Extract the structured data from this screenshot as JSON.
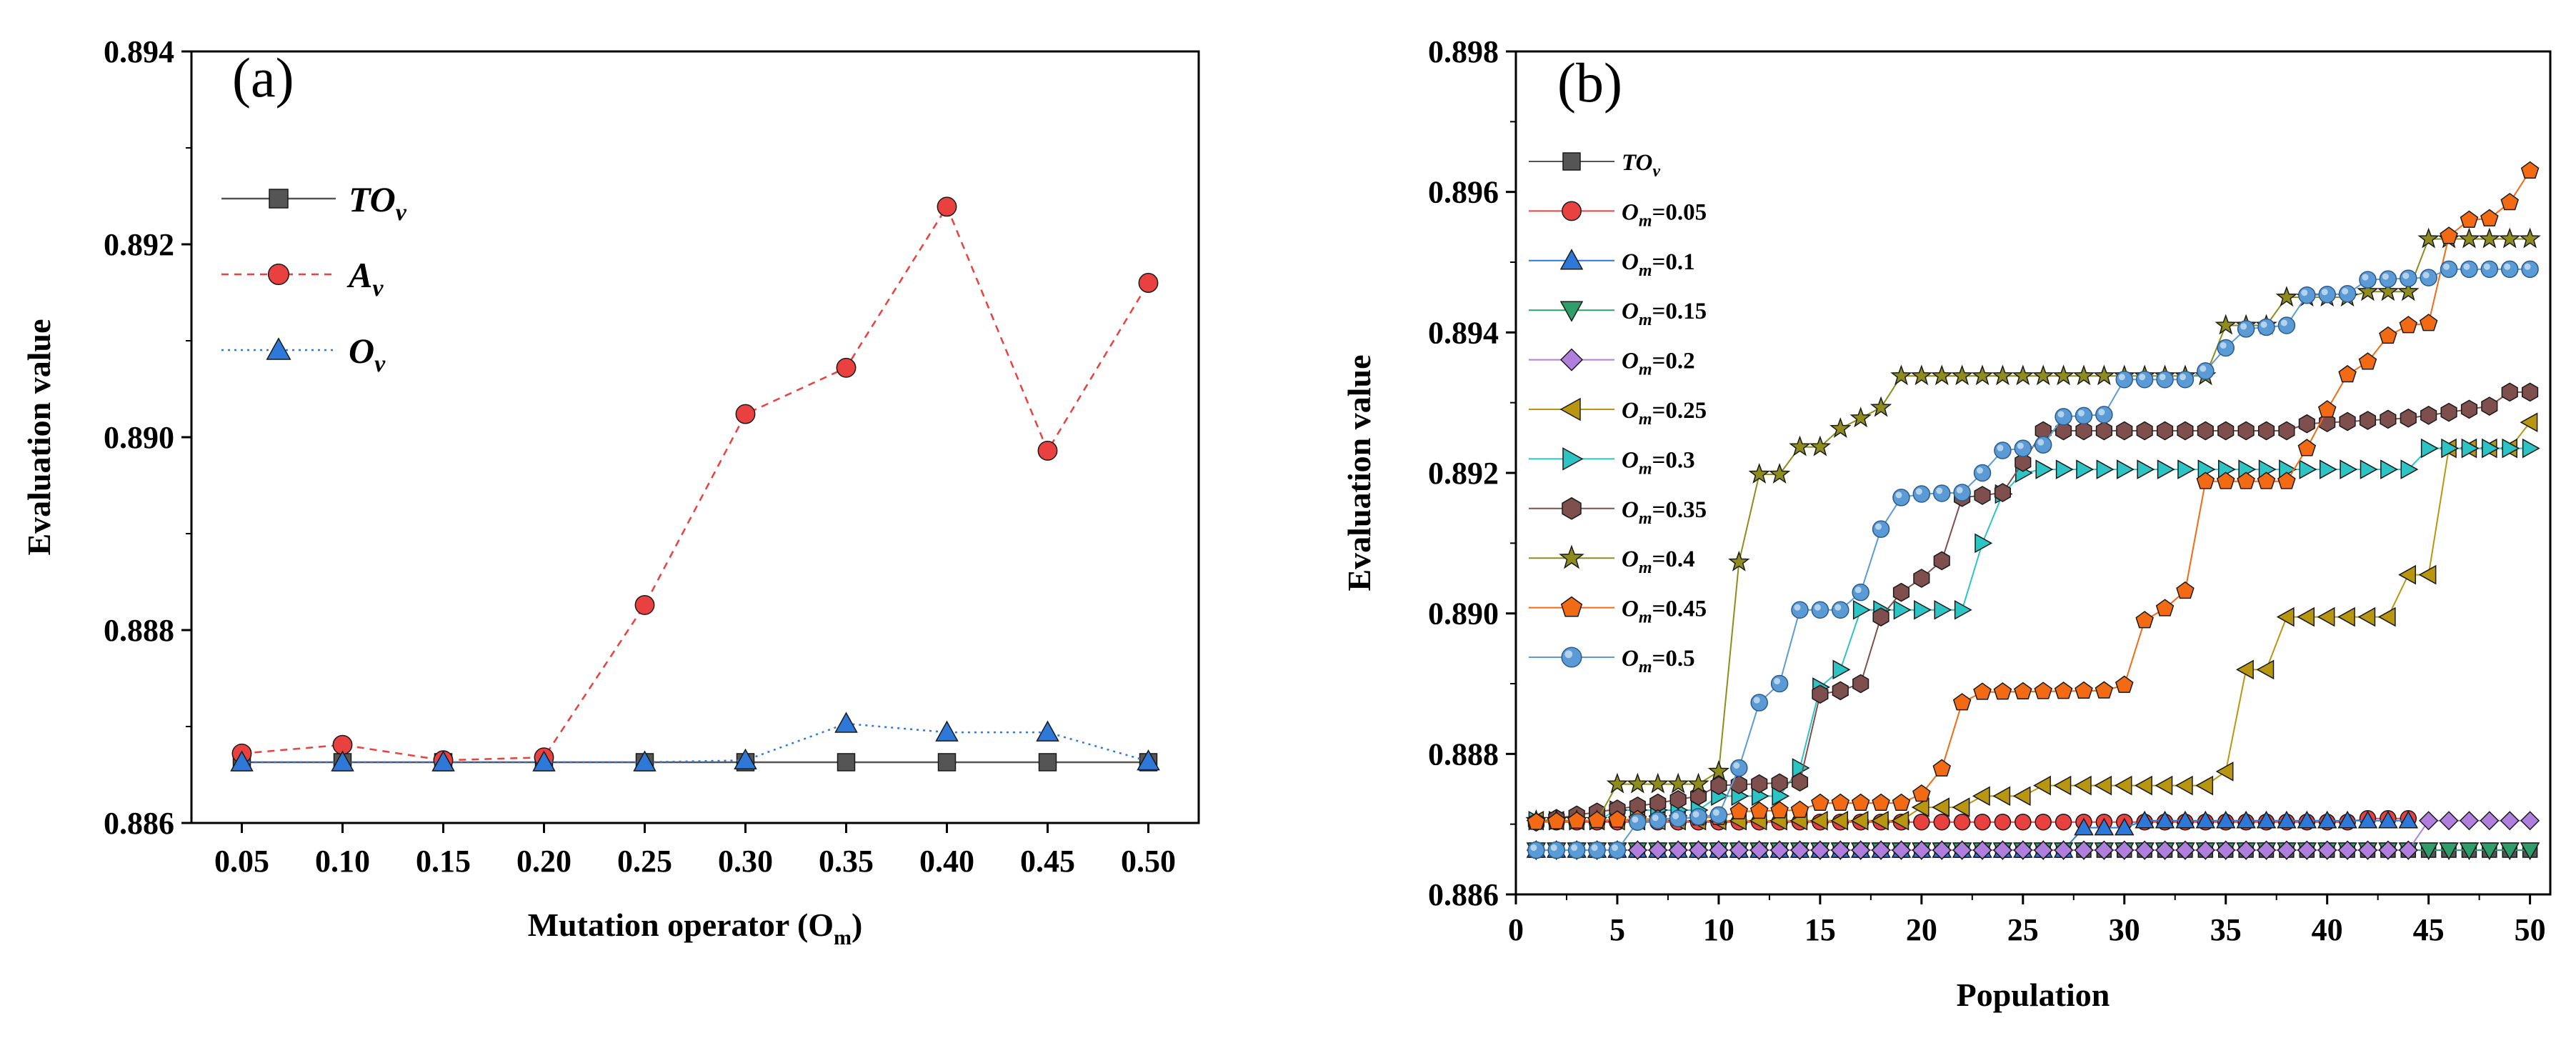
{
  "chart_data": [
    {
      "type": "line",
      "panel_label": "(a)",
      "xlabel": "Mutation operator (O",
      "xlabel_sub": "m",
      "xlabel_end": ")",
      "ylabel": "Evaluation value",
      "xlim": [
        0.025,
        0.525
      ],
      "ylim": [
        0.886,
        0.894
      ],
      "x": [
        0.05,
        0.1,
        0.15,
        0.2,
        0.25,
        0.3,
        0.35,
        0.4,
        0.45,
        0.5
      ],
      "x_tick_labels": [
        "0.05",
        "0.10",
        "0.15",
        "0.20",
        "0.25",
        "0.30",
        "0.35",
        "0.40",
        "0.45",
        "0.50"
      ],
      "y_ticks": [
        0.886,
        0.888,
        0.89,
        0.892,
        0.894
      ],
      "y_tick_labels": [
        "0.886",
        "0.888",
        "0.890",
        "0.892",
        "0.894"
      ],
      "legend_position": "upper-left",
      "series": [
        {
          "name": "TO",
          "sub": "v",
          "color": "#555555",
          "marker": "square",
          "dash": "",
          "values": [
            0.88663,
            0.88663,
            0.88663,
            0.88663,
            0.88663,
            0.88663,
            0.88663,
            0.88663,
            0.88663,
            0.88663
          ]
        },
        {
          "name": "A",
          "sub": "v",
          "color": "#e8413f",
          "marker": "circle",
          "dash": "10,8",
          "values": [
            0.88672,
            0.88681,
            0.88665,
            0.88668,
            0.88826,
            0.89024,
            0.89072,
            0.89239,
            0.88986,
            0.8916
          ]
        },
        {
          "name": "O",
          "sub": "v",
          "color": "#2d78d8",
          "marker": "triangle-up",
          "dash": "3,6",
          "values": [
            0.88663,
            0.88663,
            0.88663,
            0.88663,
            0.88663,
            0.88665,
            0.88703,
            0.88694,
            0.88694,
            0.88664
          ]
        }
      ]
    },
    {
      "type": "line",
      "panel_label": "(b)",
      "xlabel": "Population",
      "ylabel": "Evaluation value",
      "xlim": [
        0,
        51
      ],
      "ylim": [
        0.886,
        0.898
      ],
      "x_ticks": [
        0,
        5,
        10,
        15,
        20,
        25,
        30,
        35,
        40,
        45,
        50
      ],
      "x_tick_labels": [
        "0",
        "5",
        "10",
        "15",
        "20",
        "25",
        "30",
        "35",
        "40",
        "45",
        "50"
      ],
      "y_ticks": [
        0.886,
        0.888,
        0.89,
        0.892,
        0.894,
        0.896,
        0.898
      ],
      "y_tick_labels": [
        "0.886",
        "0.888",
        "0.890",
        "0.892",
        "0.894",
        "0.896",
        "0.898"
      ],
      "legend_position": "upper-left",
      "series": [
        {
          "name": "TO",
          "sub": "v",
          "eq": "",
          "color": "#555555",
          "marker": "square",
          "breakpoints": [
            [
              1,
              0.88663
            ],
            [
              50,
              0.88663
            ]
          ]
        },
        {
          "name": "O",
          "sub": "m",
          "eq": "=0.05",
          "color": "#e8413f",
          "marker": "circle",
          "breakpoints": [
            [
              1,
              0.88703
            ],
            [
              41,
              0.88703
            ],
            [
              42,
              0.88708
            ],
            [
              44,
              0.88708
            ]
          ]
        },
        {
          "name": "O",
          "sub": "m",
          "eq": "=0.1",
          "color": "#2d78d8",
          "marker": "triangle-up",
          "breakpoints": [
            [
              1,
              0.88663
            ],
            [
              27,
              0.88663
            ],
            [
              28,
              0.88695
            ],
            [
              30,
              0.88695
            ],
            [
              31,
              0.88705
            ],
            [
              44,
              0.88705
            ]
          ]
        },
        {
          "name": "O",
          "sub": "m",
          "eq": "=0.15",
          "color": "#2e9e6a",
          "marker": "triangle-down",
          "breakpoints": [
            [
              1,
              0.88663
            ],
            [
              44,
              0.88663
            ],
            [
              45,
              0.88663
            ],
            [
              50,
              0.88663
            ]
          ]
        },
        {
          "name": "O",
          "sub": "m",
          "eq": "=0.2",
          "color": "#b07fdd",
          "marker": "diamond",
          "breakpoints": [
            [
              1,
              0.88663
            ],
            [
              44,
              0.88663
            ],
            [
              45,
              0.88705
            ],
            [
              50,
              0.88705
            ]
          ]
        },
        {
          "name": "O",
          "sub": "m",
          "eq": "=0.25",
          "color": "#b8960f",
          "marker": "triangle-left",
          "breakpoints": [
            [
              1,
              0.88705
            ],
            [
              19,
              0.88705
            ],
            [
              20,
              0.88724
            ],
            [
              22,
              0.88724
            ],
            [
              23,
              0.8874
            ],
            [
              25,
              0.8874
            ],
            [
              26,
              0.88755
            ],
            [
              34,
              0.88755
            ],
            [
              35,
              0.88775
            ],
            [
              36,
              0.8892
            ],
            [
              37,
              0.8892
            ],
            [
              38,
              0.88995
            ],
            [
              43,
              0.88995
            ],
            [
              44,
              0.89055
            ],
            [
              45,
              0.89055
            ],
            [
              46,
              0.89235
            ],
            [
              49,
              0.89235
            ],
            [
              50,
              0.89272
            ]
          ]
        },
        {
          "name": "O",
          "sub": "m",
          "eq": "=0.3",
          "color": "#2cc4c4",
          "marker": "triangle-right",
          "breakpoints": [
            [
              1,
              0.88705
            ],
            [
              4,
              0.88705
            ],
            [
              5,
              0.8872
            ],
            [
              9,
              0.8872
            ],
            [
              10,
              0.8874
            ],
            [
              13,
              0.8874
            ],
            [
              14,
              0.8878
            ],
            [
              15,
              0.88895
            ],
            [
              16,
              0.8892
            ],
            [
              17,
              0.89005
            ],
            [
              21,
              0.89005
            ],
            [
              22,
              0.89005
            ],
            [
              23,
              0.891
            ],
            [
              24,
              0.8917
            ],
            [
              25,
              0.892
            ],
            [
              26,
              0.89205
            ],
            [
              44,
              0.89205
            ],
            [
              45,
              0.89235
            ],
            [
              50,
              0.89235
            ]
          ]
        },
        {
          "name": "O",
          "sub": "m",
          "eq": "=0.35",
          "color": "#7e4f4c",
          "marker": "hexagon",
          "breakpoints": [
            [
              1,
              0.88703
            ],
            [
              3,
              0.88713
            ],
            [
              7,
              0.8873
            ],
            [
              9,
              0.8874
            ],
            [
              10,
              0.88755
            ],
            [
              14,
              0.8876
            ],
            [
              15,
              0.88885
            ],
            [
              16,
              0.8889
            ],
            [
              17,
              0.889
            ],
            [
              18,
              0.88995
            ],
            [
              19,
              0.8903
            ],
            [
              20,
              0.8905
            ],
            [
              21,
              0.89075
            ],
            [
              22,
              0.89165
            ],
            [
              23,
              0.89168
            ],
            [
              24,
              0.89172
            ],
            [
              25,
              0.89215
            ],
            [
              26,
              0.8926
            ],
            [
              38,
              0.8926
            ],
            [
              39,
              0.8927
            ],
            [
              44,
              0.89278
            ],
            [
              45,
              0.89282
            ],
            [
              48,
              0.89295
            ],
            [
              49,
              0.89315
            ],
            [
              50,
              0.89315
            ]
          ]
        },
        {
          "name": "O",
          "sub": "m",
          "eq": "=0.4",
          "color": "#8e8c1c",
          "marker": "star",
          "breakpoints": [
            [
              1,
              0.88705
            ],
            [
              4,
              0.88705
            ],
            [
              5,
              0.88757
            ],
            [
              9,
              0.88757
            ],
            [
              10,
              0.88775
            ],
            [
              11,
              0.89073
            ],
            [
              12,
              0.89198
            ],
            [
              13,
              0.89198
            ],
            [
              14,
              0.89237
            ],
            [
              15,
              0.89237
            ],
            [
              16,
              0.89263
            ],
            [
              17,
              0.89278
            ],
            [
              18,
              0.89293
            ],
            [
              19,
              0.89338
            ],
            [
              34,
              0.89338
            ],
            [
              35,
              0.8941
            ],
            [
              37,
              0.8941
            ],
            [
              38,
              0.8945
            ],
            [
              41,
              0.8945
            ],
            [
              42,
              0.89458
            ],
            [
              44,
              0.89458
            ],
            [
              45,
              0.89533
            ],
            [
              50,
              0.89533
            ]
          ]
        },
        {
          "name": "O",
          "sub": "m",
          "eq": "=0.45",
          "color": "#f26a14",
          "marker": "pentagon",
          "breakpoints": [
            [
              1,
              0.88703
            ],
            [
              10,
              0.8871
            ],
            [
              11,
              0.88718
            ],
            [
              14,
              0.8872
            ],
            [
              15,
              0.8873
            ],
            [
              19,
              0.8873
            ],
            [
              20,
              0.88743
            ],
            [
              21,
              0.88779
            ],
            [
              22,
              0.88873
            ],
            [
              23,
              0.88888
            ],
            [
              29,
              0.8889
            ],
            [
              30,
              0.88898
            ],
            [
              31,
              0.8899
            ],
            [
              32,
              0.89007
            ],
            [
              33,
              0.89032
            ],
            [
              34,
              0.89188
            ],
            [
              38,
              0.89188
            ],
            [
              39,
              0.89235
            ],
            [
              40,
              0.8929
            ],
            [
              41,
              0.8934
            ],
            [
              42,
              0.89358
            ],
            [
              43,
              0.89395
            ],
            [
              44,
              0.8941
            ],
            [
              45,
              0.89413
            ],
            [
              46,
              0.89537
            ],
            [
              47,
              0.8956
            ],
            [
              48,
              0.89562
            ],
            [
              49,
              0.89585
            ],
            [
              50,
              0.8963
            ]
          ]
        },
        {
          "name": "O",
          "sub": "m",
          "eq": "=0.5",
          "color": "#5b9bd5",
          "marker": "sphere",
          "breakpoints": [
            [
              1,
              0.88663
            ],
            [
              5,
              0.88663
            ],
            [
              6,
              0.88703
            ],
            [
              10,
              0.88713
            ],
            [
              11,
              0.8878
            ],
            [
              12,
              0.88873
            ],
            [
              13,
              0.889
            ],
            [
              14,
              0.89005
            ],
            [
              16,
              0.89005
            ],
            [
              17,
              0.8903
            ],
            [
              18,
              0.8912
            ],
            [
              19,
              0.89165
            ],
            [
              20,
              0.8917
            ],
            [
              22,
              0.89172
            ],
            [
              23,
              0.892
            ],
            [
              24,
              0.89232
            ],
            [
              25,
              0.89235
            ],
            [
              26,
              0.8924
            ],
            [
              27,
              0.8928
            ],
            [
              29,
              0.89283
            ],
            [
              30,
              0.89333
            ],
            [
              33,
              0.89333
            ],
            [
              34,
              0.89345
            ],
            [
              35,
              0.89378
            ],
            [
              36,
              0.89405
            ],
            [
              38,
              0.8941
            ],
            [
              39,
              0.89453
            ],
            [
              41,
              0.89455
            ],
            [
              42,
              0.89475
            ],
            [
              45,
              0.89478
            ],
            [
              46,
              0.8949
            ],
            [
              50,
              0.8949
            ]
          ]
        }
      ]
    }
  ]
}
